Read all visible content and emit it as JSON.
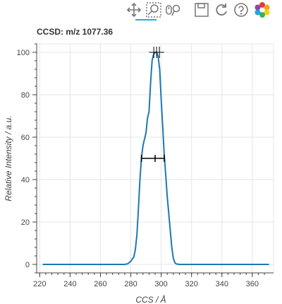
{
  "toolbar": {
    "tools": [
      {
        "name": "pan-icon",
        "active": true
      },
      {
        "name": "box-zoom-icon",
        "active": false
      },
      {
        "name": "wheel-zoom-icon",
        "active": false
      },
      {
        "name": "save-icon",
        "active": false
      },
      {
        "name": "reset-icon",
        "active": false
      },
      {
        "name": "help-icon",
        "active": false
      },
      {
        "name": "bokeh-logo-icon",
        "active": false
      }
    ]
  },
  "colors": {
    "line": "#1f77b4",
    "grid": "#e5e5e5",
    "axis": "#444444",
    "errorbar": "#000000",
    "toolbar_active": "#26aae1"
  },
  "chart_data": {
    "type": "line",
    "title": "CCSD: m/z 1077.36",
    "xlabel": "CCS / Å",
    "ylabel": "Relative Intensity / a.u.",
    "xlim": [
      218,
      374
    ],
    "ylim": [
      -4,
      104
    ],
    "xticks": [
      220,
      240,
      260,
      280,
      300,
      320,
      340,
      360
    ],
    "yticks": [
      0,
      20,
      40,
      60,
      80,
      100
    ],
    "grid": true,
    "series": [
      {
        "x": [
          222,
          240,
          260,
          276,
          278,
          280,
          282,
          283,
          284,
          285,
          286,
          287,
          288,
          289,
          290,
          291,
          292,
          293,
          294,
          295,
          296,
          297,
          298,
          299,
          300,
          301,
          302,
          303,
          304,
          305,
          306,
          307,
          308,
          309,
          310,
          312,
          320,
          340,
          360,
          371
        ],
        "y": [
          0,
          0,
          0,
          0,
          0.3,
          1.5,
          3.5,
          7,
          14,
          26,
          40,
          50,
          56,
          59,
          62,
          69,
          72,
          85,
          96,
          99,
          100,
          100,
          98,
          92,
          78,
          65,
          52,
          42,
          32,
          24,
          16,
          8,
          3,
          0.8,
          0.2,
          0,
          0,
          0,
          0,
          0
        ]
      }
    ],
    "annotations": {
      "peak_marker": {
        "x": 297,
        "y": 100,
        "xerr": 5
      },
      "fwhm_bar": {
        "x": 296,
        "y": 50,
        "xmin": 287,
        "xmax": 302
      }
    }
  }
}
